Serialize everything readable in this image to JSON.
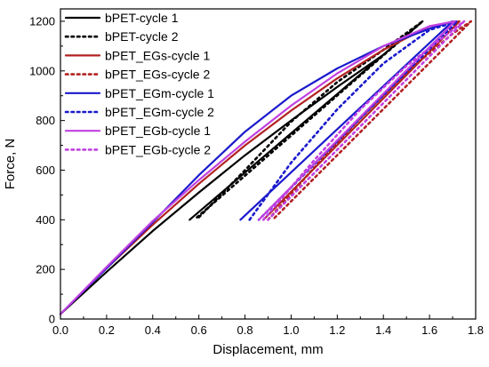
{
  "chart_data": {
    "type": "line",
    "xlabel": "Displacement, mm",
    "ylabel": "Force, N",
    "xlim": [
      0.0,
      1.8
    ],
    "ylim": [
      0,
      1250
    ],
    "xticks": [
      "0.0",
      "0.2",
      "0.4",
      "0.6",
      "0.8",
      "1.0",
      "1.2",
      "1.4",
      "1.6",
      "1.8"
    ],
    "yticks": [
      "0",
      "200",
      "400",
      "600",
      "800",
      "1000",
      "1200"
    ],
    "grid": false,
    "legend_position": "top-left",
    "series": [
      {
        "name": "bPET-cycle 1",
        "color": "#000000",
        "dash": "solid",
        "points": [
          [
            0.0,
            20
          ],
          [
            0.2,
            190
          ],
          [
            0.4,
            355
          ],
          [
            0.6,
            510
          ],
          [
            0.8,
            660
          ],
          [
            1.0,
            800
          ],
          [
            1.2,
            935
          ],
          [
            1.4,
            1065
          ],
          [
            1.57,
            1200
          ],
          [
            0.56,
            400
          ]
        ]
      },
      {
        "name": "bPET-cycle 2",
        "color": "#000000",
        "dash": "dotted",
        "points": [
          [
            0.6,
            410
          ],
          [
            0.8,
            600
          ],
          [
            1.0,
            795
          ],
          [
            1.2,
            955
          ],
          [
            1.4,
            1085
          ],
          [
            1.57,
            1200
          ],
          [
            0.58,
            400
          ]
        ]
      },
      {
        "name": "bPET_EGs-cycle 1",
        "color": "#b22222",
        "dash": "solid",
        "points": [
          [
            0.0,
            20
          ],
          [
            0.2,
            205
          ],
          [
            0.4,
            380
          ],
          [
            0.6,
            545
          ],
          [
            0.8,
            700
          ],
          [
            1.0,
            840
          ],
          [
            1.2,
            970
          ],
          [
            1.4,
            1085
          ],
          [
            1.6,
            1180
          ],
          [
            1.73,
            1200
          ],
          [
            0.88,
            400
          ]
        ]
      },
      {
        "name": "bPET_EGs-cycle 2",
        "color": "#b22222",
        "dash": "dotted",
        "points": [
          [
            0.9,
            400
          ],
          [
            1.1,
            610
          ],
          [
            1.3,
            810
          ],
          [
            1.5,
            995
          ],
          [
            1.7,
            1150
          ],
          [
            1.78,
            1200
          ],
          [
            0.92,
            400
          ]
        ]
      },
      {
        "name": "bPET_EGm-cycle 1",
        "color": "#1a1acd",
        "dash": "solid",
        "points": [
          [
            0.0,
            20
          ],
          [
            0.2,
            205
          ],
          [
            0.4,
            390
          ],
          [
            0.6,
            580
          ],
          [
            0.8,
            755
          ],
          [
            1.0,
            900
          ],
          [
            1.2,
            1010
          ],
          [
            1.4,
            1100
          ],
          [
            1.6,
            1170
          ],
          [
            1.7,
            1200
          ],
          [
            0.78,
            400
          ]
        ]
      },
      {
        "name": "bPET_EGm-cycle 2",
        "color": "#1a1acd",
        "dash": "dotted",
        "points": [
          [
            0.82,
            400
          ],
          [
            1.0,
            630
          ],
          [
            1.2,
            845
          ],
          [
            1.4,
            1030
          ],
          [
            1.6,
            1165
          ],
          [
            1.72,
            1200
          ],
          [
            0.86,
            400
          ]
        ]
      },
      {
        "name": "bPET_EGb-cycle 1",
        "color": "#c040e0",
        "dash": "solid",
        "points": [
          [
            0.0,
            20
          ],
          [
            0.2,
            210
          ],
          [
            0.4,
            395
          ],
          [
            0.6,
            560
          ],
          [
            0.8,
            715
          ],
          [
            1.0,
            860
          ],
          [
            1.2,
            990
          ],
          [
            1.4,
            1100
          ],
          [
            1.6,
            1180
          ],
          [
            1.71,
            1200
          ],
          [
            0.86,
            400
          ]
        ]
      },
      {
        "name": "bPET_EGb-cycle 2",
        "color": "#c040e0",
        "dash": "dotted",
        "points": [
          [
            0.88,
            400
          ],
          [
            1.1,
            640
          ],
          [
            1.3,
            845
          ],
          [
            1.5,
            1020
          ],
          [
            1.7,
            1165
          ],
          [
            1.75,
            1200
          ],
          [
            0.9,
            400
          ]
        ]
      }
    ]
  }
}
